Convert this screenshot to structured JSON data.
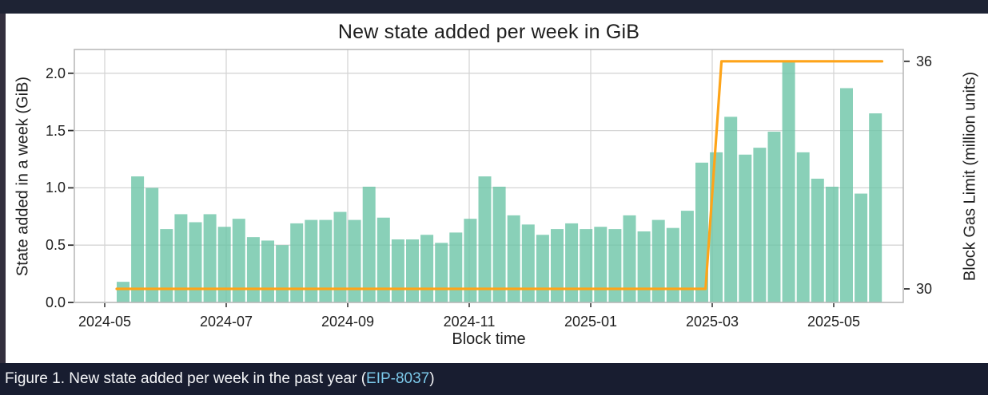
{
  "page": {
    "caption_prefix": "Figure 1. New state added per week in the past year (",
    "caption_link": "EIP-8037",
    "caption_suffix": ")"
  },
  "chart_data": {
    "type": "bar",
    "title": "New state added per week in GiB",
    "xlabel": "Block time",
    "ylabel_left": "State added in a week (GiB)",
    "ylabel_right": "Block Gas Limit (million units)",
    "x_tick_labels": [
      "2024-05",
      "2024-07",
      "2024-09",
      "2024-11",
      "2025-01",
      "2025-03",
      "2025-05"
    ],
    "y_left_ticks": [
      {
        "value": 0.0,
        "label": "0.0"
      },
      {
        "value": 0.5,
        "label": "0.5"
      },
      {
        "value": 1.0,
        "label": "1.0"
      },
      {
        "value": 1.5,
        "label": "1.5"
      },
      {
        "value": 2.0,
        "label": "2.0"
      }
    ],
    "y_right_ticks": [
      {
        "value": 30,
        "label": "30"
      },
      {
        "value": 36,
        "label": "36"
      }
    ],
    "ylim_left": [
      0,
      2.2
    ],
    "grid": true,
    "legend_position": "none",
    "series": [
      {
        "name": "State added in a week",
        "type": "bar",
        "axis": "left",
        "unit": "GiB",
        "color": "#6CC4A6",
        "values": [
          0.18,
          1.1,
          1.0,
          0.64,
          0.77,
          0.7,
          0.77,
          0.66,
          0.73,
          0.57,
          0.54,
          0.5,
          0.69,
          0.72,
          0.72,
          0.79,
          0.72,
          1.01,
          0.74,
          0.55,
          0.55,
          0.59,
          0.52,
          0.61,
          0.73,
          1.1,
          1.01,
          0.76,
          0.68,
          0.59,
          0.64,
          0.69,
          0.64,
          0.66,
          0.64,
          0.76,
          0.62,
          0.72,
          0.65,
          0.8,
          1.22,
          1.31,
          1.62,
          1.29,
          1.35,
          1.49,
          2.1,
          1.31,
          1.08,
          1.01,
          1.87,
          0.95,
          1.65
        ]
      },
      {
        "name": "Block Gas Limit",
        "type": "line",
        "axis": "right",
        "unit": "million units",
        "color": "#FEA419",
        "points": [
          {
            "week": 0.0,
            "value": 30
          },
          {
            "week": 40.7,
            "value": 30
          },
          {
            "week": 41.8,
            "value": 36
          },
          {
            "week": 52.9,
            "value": 36
          }
        ]
      }
    ]
  },
  "colors": {
    "plot_bg": "#FFFFFF",
    "grid": "#D5D5D5",
    "spine": "#B6B6B6",
    "bar": "#6CC4A6",
    "line": "#FEA419",
    "top_bar_bg": "#1E2334",
    "left_strip_bg": "#332F3E",
    "caption_bg": "#181D30",
    "caption_text": "#F4F5F7",
    "link": "#7CC9EA"
  }
}
